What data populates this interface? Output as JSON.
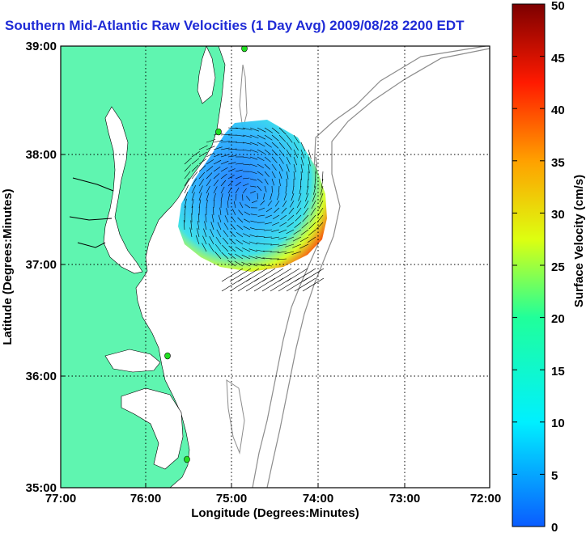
{
  "title": "Southern Mid-Atlantic Raw Velocities (1 Day Avg) 2009/08/28 2200 EDT",
  "xlabel": "Longitude (Degrees:Minutes)",
  "ylabel": "Latitude (Degrees:Minutes)",
  "colorbar_label": "Surface Velocity (cm/s)",
  "x_ticks": [
    "77:00",
    "76:00",
    "75:00",
    "74:00",
    "73:00",
    "72:00"
  ],
  "y_ticks": [
    "39:00",
    "38:00",
    "37:00",
    "36:00",
    "35:00"
  ],
  "colorbar_ticks": [
    "50",
    "45",
    "40",
    "35",
    "30",
    "25",
    "20",
    "15",
    "10",
    "5",
    "0"
  ],
  "colors": {
    "land": "#5ff5b0",
    "ocean": "#ffffff",
    "contour": "#8c8c8c",
    "title": "#1f2bd6",
    "station": "#22dd22"
  },
  "chart_data": {
    "type": "heatmap",
    "x_range": [
      -77,
      -72
    ],
    "y_range": [
      35,
      39
    ],
    "colorbar_range": [
      0,
      50
    ],
    "grid": true
  }
}
